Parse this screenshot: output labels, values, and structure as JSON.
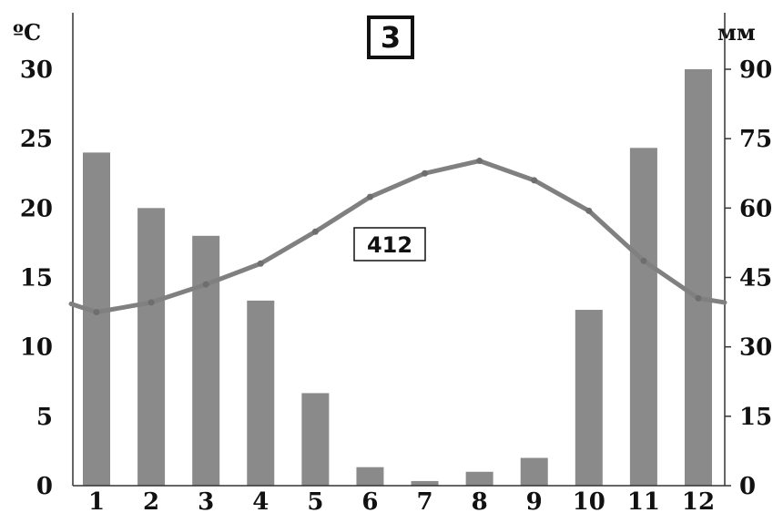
{
  "chart_data": {
    "type": "bar",
    "title": "3",
    "annotation": "412",
    "left_axis_unit": "ºC",
    "right_axis_unit": "мм",
    "categories": [
      "1",
      "2",
      "3",
      "4",
      "5",
      "6",
      "7",
      "8",
      "9",
      "10",
      "11",
      "12"
    ],
    "left_ylim": [
      0,
      30
    ],
    "right_ylim": [
      0,
      90
    ],
    "left_ticks": [
      "0",
      "5",
      "10",
      "15",
      "20",
      "25",
      "30"
    ],
    "right_ticks": [
      "0",
      "15",
      "30",
      "45",
      "60",
      "75",
      "90"
    ],
    "series": [
      {
        "type": "bar",
        "axis": "right",
        "color": "#8a8a8a",
        "values": [
          72,
          60,
          54,
          40,
          20,
          4,
          1,
          3,
          6,
          38,
          73,
          90
        ]
      },
      {
        "type": "line",
        "axis": "left",
        "color": "#808080",
        "values": [
          12.5,
          13.2,
          14.5,
          16.0,
          18.3,
          20.8,
          22.5,
          23.4,
          22.0,
          19.8,
          16.2,
          13.5
        ]
      }
    ],
    "grid": false,
    "legend": "none"
  }
}
